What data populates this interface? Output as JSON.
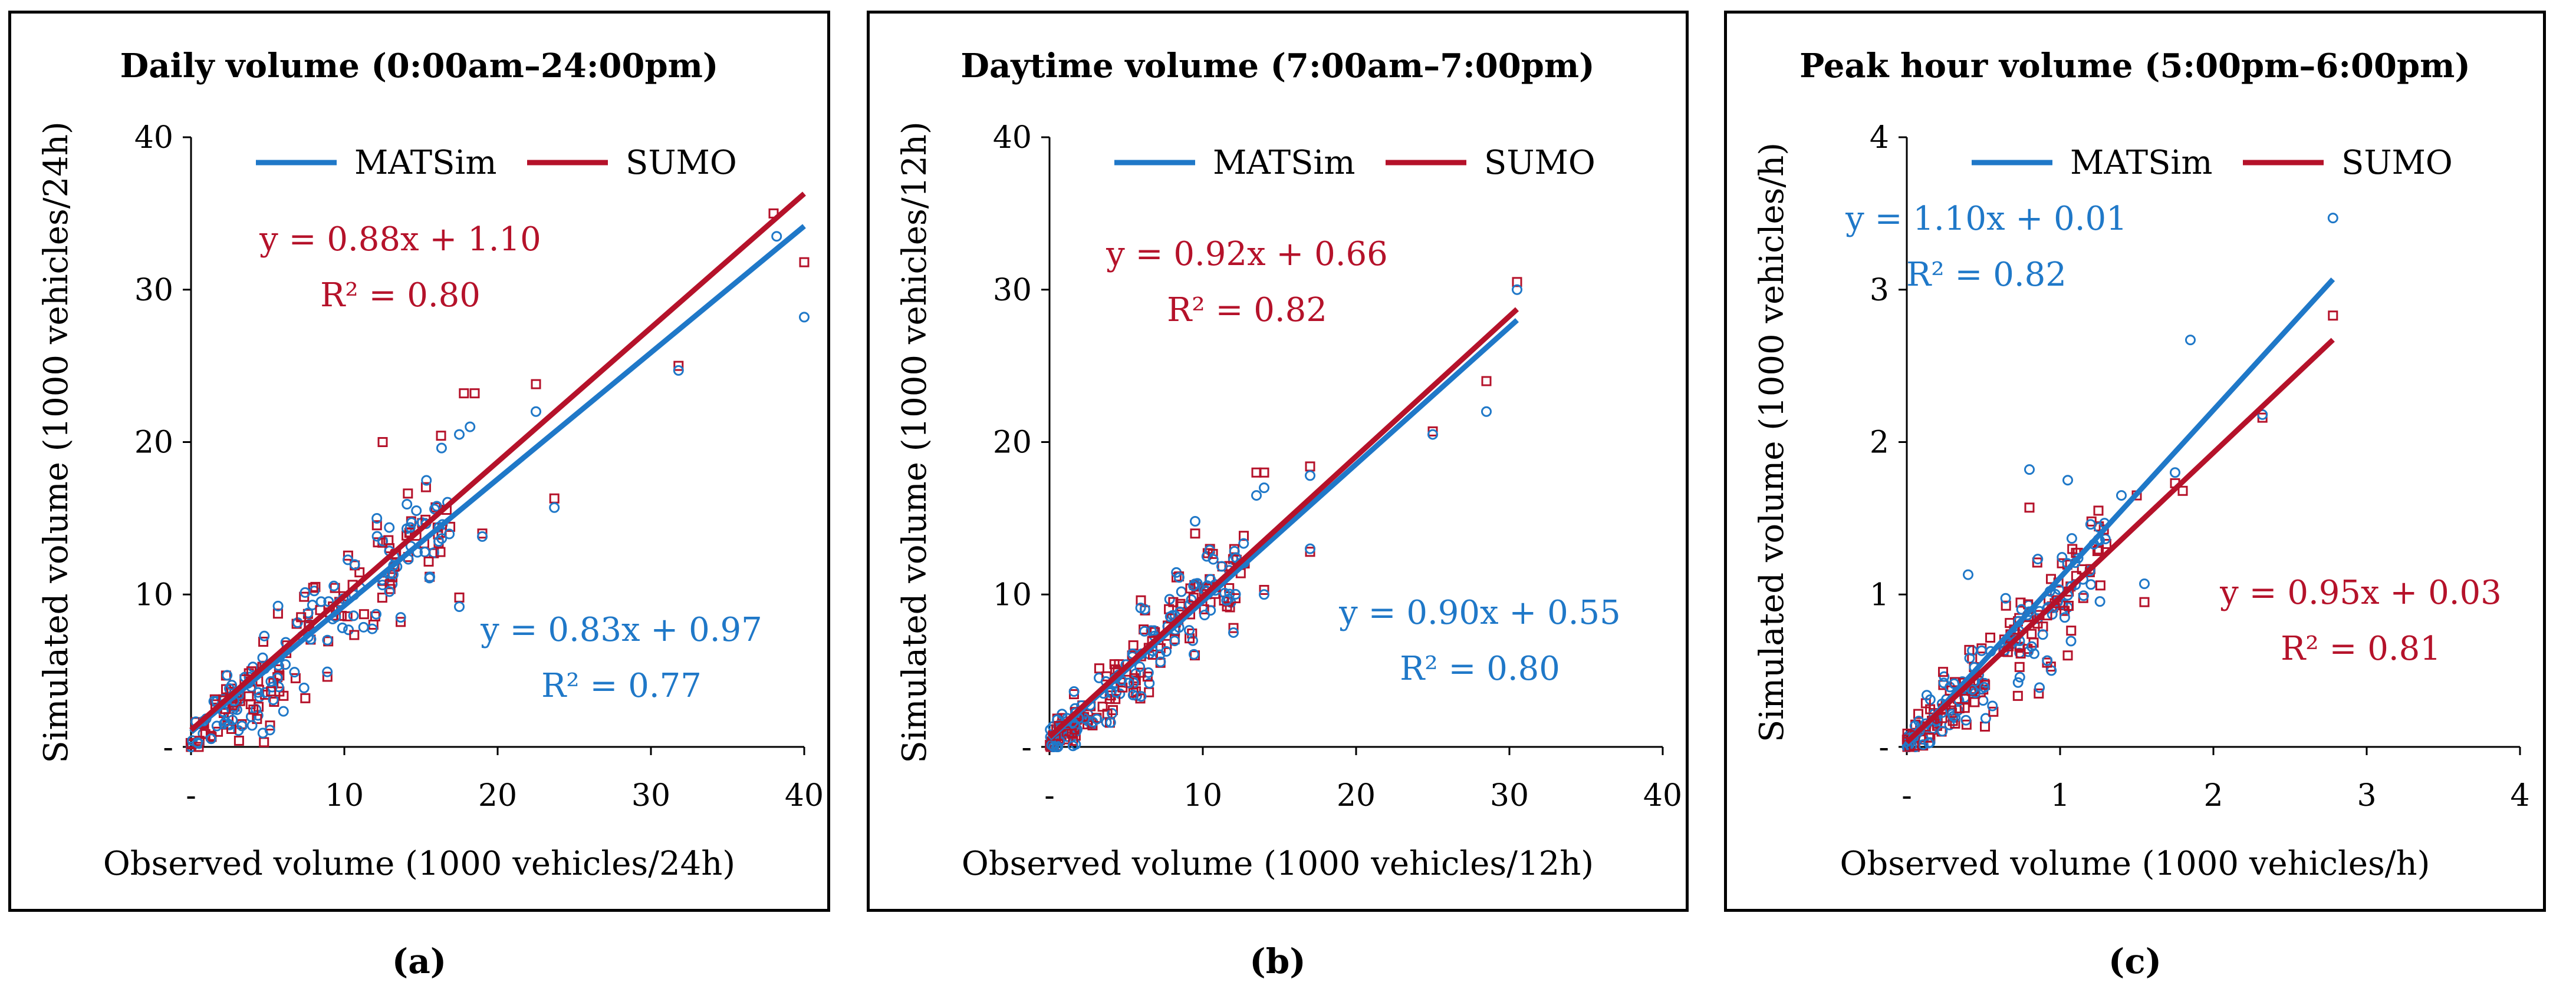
{
  "colors": {
    "matsim": "#1f78c8",
    "sumo": "#b5122a",
    "axis": "#000000",
    "text": "#000000"
  },
  "chart_data": [
    {
      "type": "scatter",
      "caption": "(a)",
      "title": "Daily volume (0:00am–24:00pm)",
      "xlabel": "Observed volume (1000 vehicles/24h)",
      "ylabel": "Simulated volume (1000 vehicles/24h)",
      "xlim": [
        0,
        40
      ],
      "ylim": [
        0,
        40
      ],
      "xticks": [
        "-",
        "10",
        "20",
        "30",
        "40"
      ],
      "yticks": [
        "-",
        "10",
        "20",
        "30",
        "40"
      ],
      "tick_values": [
        0,
        10,
        20,
        30,
        40
      ],
      "legend": [
        "MATSim",
        "SUMO"
      ],
      "series": [
        {
          "name": "MATSim",
          "color": "#1f78c8",
          "marker": "circle",
          "slope": 0.83,
          "intercept": 0.97,
          "equation": "y = 0.83x + 0.97",
          "r2": "R² = 0.77",
          "outliers": [
            [
              38.2,
              33.5
            ],
            [
              40.0,
              28.2
            ],
            [
              31.8,
              24.7
            ],
            [
              23.7,
              15.7
            ],
            [
              22.5,
              22.0
            ],
            [
              18.2,
              21.0
            ],
            [
              17.5,
              20.5
            ],
            [
              19.0,
              13.8
            ],
            [
              17.5,
              9.2
            ],
            [
              14.7,
              15.5
            ]
          ]
        },
        {
          "name": "SUMO",
          "color": "#b5122a",
          "marker": "square",
          "slope": 0.88,
          "intercept": 1.1,
          "equation": "y = 0.88x + 1.10",
          "r2": "R² = 0.80",
          "outliers": [
            [
              38.0,
              35.0
            ],
            [
              40.0,
              31.8
            ],
            [
              31.8,
              25.0
            ],
            [
              23.7,
              16.3
            ],
            [
              22.5,
              23.8
            ],
            [
              18.5,
              23.2
            ],
            [
              17.8,
              23.2
            ],
            [
              19.0,
              14.0
            ],
            [
              17.5,
              9.8
            ],
            [
              12.5,
              20.0
            ]
          ]
        }
      ],
      "cluster": {
        "xmax": 17,
        "n": 130,
        "noise": 2.6
      }
    },
    {
      "type": "scatter",
      "caption": "(b)",
      "title": "Daytime volume (7:00am–7:00pm)",
      "xlabel": "Observed volume (1000 vehicles/12h)",
      "ylabel": "Simulated volume (1000 vehicles/12h)",
      "xlim": [
        0,
        40
      ],
      "ylim": [
        0,
        40
      ],
      "xticks": [
        "-",
        "10",
        "20",
        "30",
        "40"
      ],
      "yticks": [
        "-",
        "10",
        "20",
        "30",
        "40"
      ],
      "tick_values": [
        0,
        10,
        20,
        30,
        40
      ],
      "legend": [
        "MATSim",
        "SUMO"
      ],
      "series": [
        {
          "name": "MATSim",
          "color": "#1f78c8",
          "marker": "circle",
          "slope": 0.9,
          "intercept": 0.55,
          "equation": "y = 0.90x + 0.55",
          "r2": "R² = 0.80",
          "outliers": [
            [
              30.5,
              30.0
            ],
            [
              28.5,
              22.0
            ],
            [
              25.0,
              20.5
            ],
            [
              17.0,
              17.8
            ],
            [
              17.0,
              13.0
            ],
            [
              14.0,
              17.0
            ],
            [
              13.5,
              16.5
            ],
            [
              14.0,
              10.0
            ],
            [
              12.0,
              7.5
            ],
            [
              9.5,
              14.8
            ]
          ]
        },
        {
          "name": "SUMO",
          "color": "#b5122a",
          "marker": "square",
          "slope": 0.92,
          "intercept": 0.66,
          "equation": "y = 0.92x + 0.66",
          "r2": "R² = 0.82",
          "outliers": [
            [
              30.5,
              30.5
            ],
            [
              28.5,
              24.0
            ],
            [
              25.0,
              20.7
            ],
            [
              17.0,
              18.4
            ],
            [
              17.0,
              12.8
            ],
            [
              13.5,
              18.0
            ],
            [
              14.0,
              18.0
            ],
            [
              14.0,
              10.3
            ],
            [
              12.0,
              7.8
            ],
            [
              9.5,
              14.0
            ]
          ]
        }
      ],
      "cluster": {
        "xmax": 13,
        "n": 130,
        "noise": 2.0
      }
    },
    {
      "type": "scatter",
      "caption": "(c)",
      "title": "Peak hour volume (5:00pm–6:00pm)",
      "xlabel": "Observed volume (1000 vehicles/h)",
      "ylabel": "Simulated volume (1000 vehicles/h)",
      "xlim": [
        0,
        4
      ],
      "ylim": [
        0,
        4
      ],
      "xticks": [
        "-",
        "1",
        "2",
        "3",
        "4"
      ],
      "yticks": [
        "-",
        "1",
        "2",
        "3",
        "4"
      ],
      "tick_values": [
        0,
        1,
        2,
        3,
        4
      ],
      "legend": [
        "MATSim",
        "SUMO"
      ],
      "series": [
        {
          "name": "MATSim",
          "color": "#1f78c8",
          "marker": "circle",
          "slope": 1.1,
          "intercept": 0.01,
          "equation": "y = 1.10x + 0.01",
          "r2": "R² = 0.82",
          "outliers": [
            [
              2.78,
              3.47
            ],
            [
              1.85,
              2.67
            ],
            [
              2.32,
              2.18
            ],
            [
              1.75,
              1.8
            ],
            [
              1.55,
              1.07
            ],
            [
              1.05,
              1.75
            ],
            [
              0.8,
              1.82
            ],
            [
              1.4,
              1.65
            ],
            [
              0.4,
              1.13
            ],
            [
              1.22,
              1.33
            ]
          ]
        },
        {
          "name": "SUMO",
          "color": "#b5122a",
          "marker": "square",
          "slope": 0.95,
          "intercept": 0.03,
          "equation": "y = 0.95x + 0.03",
          "r2": "R² = 0.81",
          "outliers": [
            [
              2.78,
              2.83
            ],
            [
              2.32,
              2.16
            ],
            [
              1.8,
              1.68
            ],
            [
              1.75,
              1.73
            ],
            [
              1.55,
              0.95
            ],
            [
              1.5,
              1.65
            ],
            [
              0.8,
              1.57
            ],
            [
              1.25,
              1.55
            ],
            [
              1.05,
              0.6
            ],
            [
              0.7,
              0.77
            ]
          ]
        }
      ],
      "cluster": {
        "xmax": 1.3,
        "n": 130,
        "noise": 0.2
      }
    }
  ]
}
